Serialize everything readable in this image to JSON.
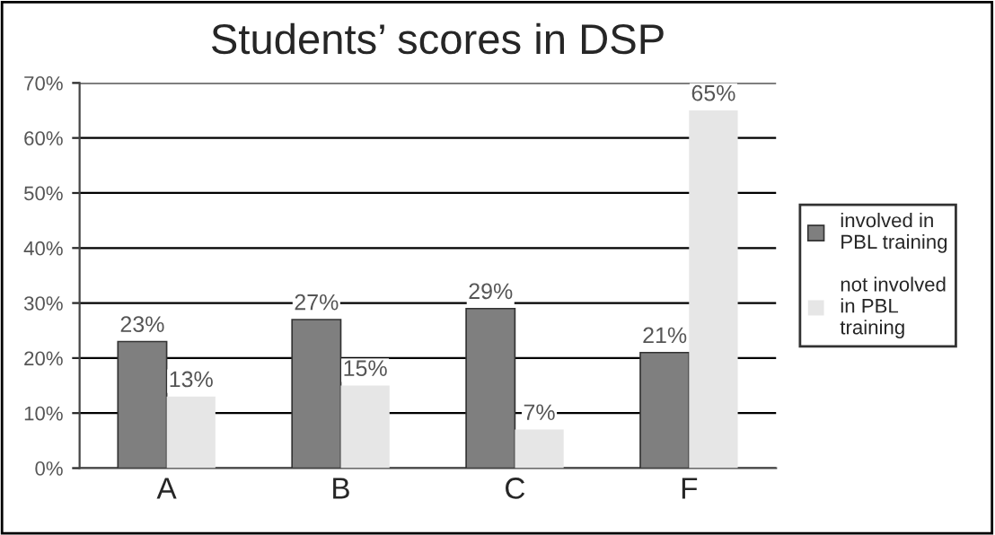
{
  "chart_data": {
    "type": "bar",
    "title": "Students’ scores in DSP",
    "categories": [
      "A",
      "B",
      "C",
      "F"
    ],
    "series": [
      {
        "name": "involved in\nPBL training",
        "color": "#7f7f7f",
        "values": [
          23,
          27,
          29,
          21
        ],
        "value_labels": [
          "23%",
          "27%",
          "29%",
          "21%"
        ]
      },
      {
        "name": "not involved\nin PBL\ntraining",
        "color": "#e6e6e6",
        "values": [
          13,
          15,
          7,
          65
        ],
        "value_labels": [
          "13%",
          "15%",
          "7%",
          "65%"
        ]
      }
    ],
    "ylim": [
      0,
      70
    ],
    "yticks": [
      {
        "value": 0,
        "label": "0%"
      },
      {
        "value": 10,
        "label": "10%"
      },
      {
        "value": 20,
        "label": "20%"
      },
      {
        "value": 30,
        "label": "30%"
      },
      {
        "value": 40,
        "label": "40%"
      },
      {
        "value": 50,
        "label": "50%"
      },
      {
        "value": 60,
        "label": "60%"
      },
      {
        "value": 70,
        "label": "70%"
      }
    ],
    "grid": "y",
    "legend": "right"
  }
}
